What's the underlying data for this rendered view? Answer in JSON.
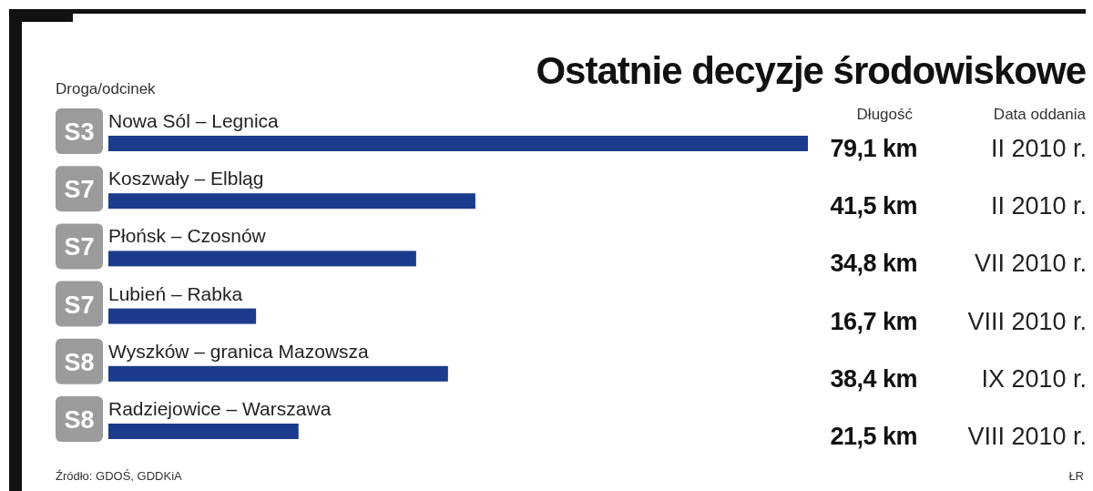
{
  "chart_data": {
    "type": "bar",
    "orientation": "horizontal",
    "title": "Ostatnie decyzje środowiskowe",
    "categories": [
      "Nowa Sól – Legnica",
      "Koszwały – Elbląg",
      "Płońsk – Czosnów",
      "Lubień – Rabka",
      "Wyszków – granica Mazowsza",
      "Radziejowice – Warszawa"
    ],
    "values": [
      79.1,
      41.5,
      34.8,
      16.7,
      38.4,
      21.5
    ],
    "value_labels": [
      "79,1 km",
      "41,5 km",
      "34,8 km",
      "16,7 km",
      "38,4 km",
      "21,5 km"
    ],
    "color": "#1b3c8c",
    "annotations": [
      "Droga/odcinek",
      "Długość",
      "Data oddania",
      "Źródło: GDOŚ, GDDKiA",
      "ŁR",
      "S3",
      "S7",
      "S7",
      "S7",
      "S8",
      "S8",
      "II 2010 r.",
      "II 2010 r.",
      "VII 2010 r.",
      "VIII 2010 r.",
      "IX 2010 r.",
      "VIII 2010 r."
    ]
  }
}
